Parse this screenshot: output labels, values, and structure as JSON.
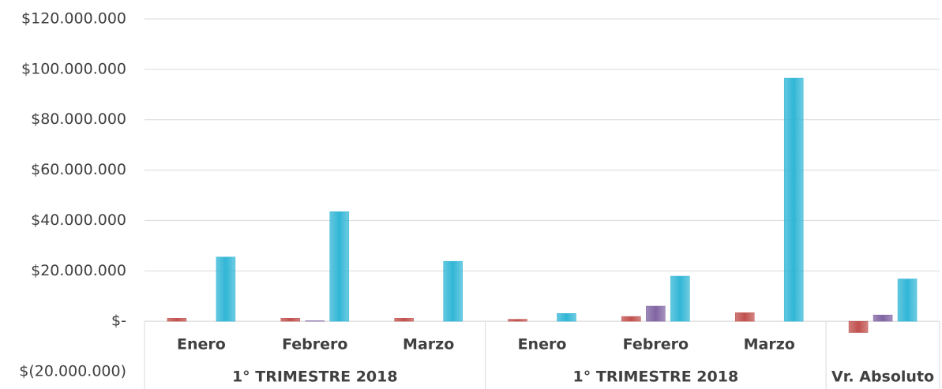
{
  "chart_data": {
    "type": "bar",
    "categories": [
      "Enero",
      "Febrero",
      "Marzo",
      "Enero",
      "Febrero",
      "Marzo",
      null
    ],
    "groups": [
      {
        "label": "1° TRIMESTRE 2018",
        "count": 3
      },
      {
        "label": "1° TRIMESTRE 2018",
        "count": 3
      },
      {
        "label": "Vr. Absoluto",
        "count": 1
      }
    ],
    "series": [
      {
        "color": "#c0504d",
        "values": [
          1200000,
          1200000,
          1200000,
          800000,
          1900000,
          3400000,
          -4500000
        ]
      },
      {
        "color": "#8064a2",
        "values": [
          0,
          200000,
          0,
          0,
          6000000,
          0,
          2500000
        ]
      },
      {
        "color": "#31b6d6",
        "values": [
          25500000,
          43500000,
          23800000,
          3100000,
          17900000,
          96500000,
          16800000
        ]
      }
    ],
    "ylim": [
      -20000000,
      120000000
    ],
    "yticks": [
      {
        "value": -20000000,
        "label": "$(20.000.000)"
      },
      {
        "value": 0,
        "label": "$-"
      },
      {
        "value": 20000000,
        "label": "$20.000.000"
      },
      {
        "value": 40000000,
        "label": "$40.000.000"
      },
      {
        "value": 60000000,
        "label": "$60.000.000"
      },
      {
        "value": 80000000,
        "label": "$80.000.000"
      },
      {
        "value": 100000000,
        "label": "$100.000.000"
      },
      {
        "value": 120000000,
        "label": "$120.000.000"
      }
    ],
    "grid": true
  }
}
